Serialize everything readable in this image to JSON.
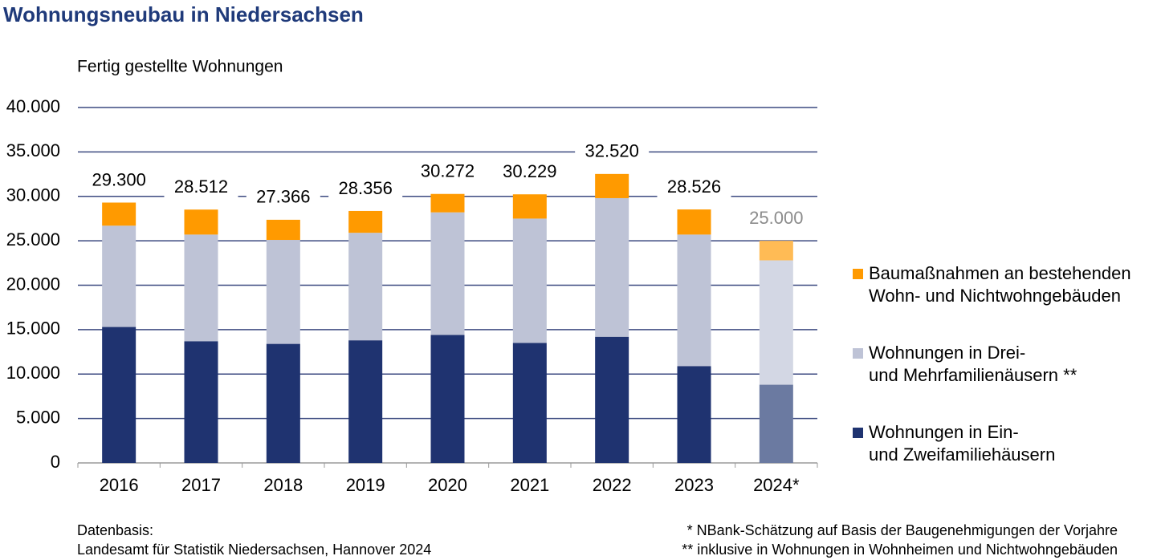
{
  "chart_data": {
    "type": "stacked-bar",
    "title": "Wohnungsneubau in Niedersachsen",
    "y_label": "Fertig gestellte Wohnungen",
    "categories": [
      "2016",
      "2017",
      "2018",
      "2019",
      "2020",
      "2021",
      "2022",
      "2023",
      "2024*"
    ],
    "series": [
      {
        "name": "Wohnungen in Ein-\nund Zweifamiliehäusern",
        "color": "#1f3370",
        "colors": [
          "#1f3370",
          "#1f3370",
          "#1f3370",
          "#1f3370",
          "#1f3370",
          "#1f3370",
          "#1f3370",
          "#1f3370",
          "#6b7aa1"
        ],
        "values": [
          15300,
          13700,
          13400,
          13800,
          14400,
          13500,
          14200,
          10900,
          8800
        ]
      },
      {
        "name": "Wohnungen in Drei-\nund Mehrfamilienäusern **",
        "color": "#bec3d6",
        "colors": [
          "#bec3d6",
          "#bec3d6",
          "#bec3d6",
          "#bec3d6",
          "#bec3d6",
          "#bec3d6",
          "#bec3d6",
          "#bec3d6",
          "#d3d7e4"
        ],
        "values": [
          11400,
          12000,
          11700,
          12100,
          13800,
          14000,
          15600,
          14800,
          14000
        ]
      },
      {
        "name": "Baumaßnahmen an bestehenden\nWohn- und Nichtwohngebäuden",
        "color": "#ff9a00",
        "colors": [
          "#ff9a00",
          "#ff9a00",
          "#ff9a00",
          "#ff9a00",
          "#ff9a00",
          "#ff9a00",
          "#ff9a00",
          "#ff9a00",
          "#ffbb55"
        ],
        "values": [
          2600,
          2812,
          2266,
          2456,
          2072,
          2729,
          2720,
          2826,
          2200
        ]
      }
    ],
    "totals": {
      "values": [
        29300,
        28512,
        27366,
        28356,
        30272,
        30229,
        32520,
        28526,
        25000
      ],
      "value_labels": [
        "29.300",
        "28.512",
        "27.366",
        "28.356",
        "30.272",
        "30.229",
        "32.520",
        "28.526",
        "25.000"
      ],
      "colors": [
        "#000000",
        "#000000",
        "#000000",
        "#000000",
        "#000000",
        "#000000",
        "#000000",
        "#000000",
        "#8c8c8c"
      ]
    },
    "ylim": [
      0,
      40000
    ],
    "yticks": [
      0,
      {
        "value": 5000,
        "label": "5.000"
      },
      {
        "value": 10000,
        "label": "10.000"
      },
      {
        "value": 15000,
        "label": "15.000"
      },
      {
        "value": 20000,
        "label": "20.000"
      },
      {
        "value": 25000,
        "label": "25.000"
      },
      {
        "value": 30000,
        "label": "30.000"
      },
      {
        "value": 35000,
        "label": "35.000"
      },
      {
        "value": 40000,
        "label": "40.000"
      }
    ],
    "grid": true,
    "legend": "right",
    "source": [
      "Datenbasis:",
      "Landesamt für Statistik Niedersachsen, Hannover 2024"
    ],
    "footnotes": [
      "* NBank-Schätzung auf Basis der Baugenehmigungen der Vorjahre",
      "** inklusive in Wohnungen in Wohnheimen und Nichtwohngebäuden"
    ]
  }
}
